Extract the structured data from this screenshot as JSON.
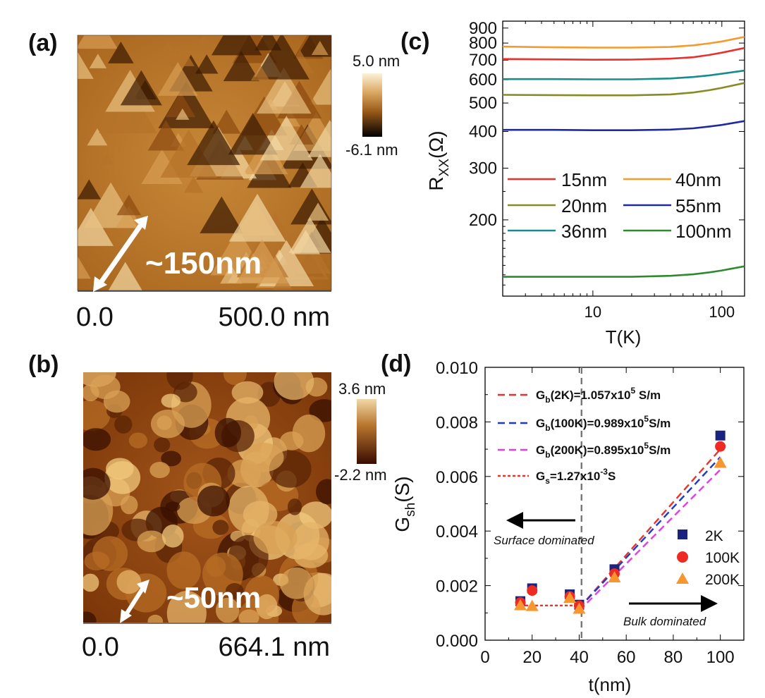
{
  "panels": {
    "a": {
      "label": "(a)",
      "scale_max": "5.0 nm",
      "scale_min": "-6.1 nm",
      "axis_start": "0.0",
      "axis_end": "500.0 nm",
      "feature": "~150nm"
    },
    "b": {
      "label": "(b)",
      "scale_max": "3.6 nm",
      "scale_min": "-2.2 nm",
      "axis_start": "0.0",
      "axis_end": "664.1 nm",
      "feature": "~50nm"
    },
    "c": {
      "label": "(c)"
    },
    "d": {
      "label": "(d)"
    }
  },
  "chart_data": [
    {
      "id": "c",
      "type": "line",
      "title": "",
      "xlabel": "T(K)",
      "ylabel": "R_XX(Ω)",
      "xscale": "log",
      "yscale": "log",
      "xlim": [
        2,
        150
      ],
      "ylim": [
        110,
        950
      ],
      "x_ticks": [
        10,
        100
      ],
      "y_ticks": [
        200,
        300,
        400,
        500,
        600,
        700,
        800,
        900
      ],
      "legend": {
        "location": "center-left",
        "columns": 2
      },
      "series": [
        {
          "name": "15nm",
          "color": "#e8322b",
          "points": [
            [
              2,
              706
            ],
            [
              5,
              704
            ],
            [
              10,
              702
            ],
            [
              20,
              703
            ],
            [
              40,
              708
            ],
            [
              60,
              716
            ],
            [
              80,
              729
            ],
            [
              100,
              742
            ],
            [
              150,
              770
            ]
          ]
        },
        {
          "name": "40nm",
          "color": "#f59a2c",
          "points": [
            [
              2,
              778
            ],
            [
              5,
              774
            ],
            [
              10,
              772
            ],
            [
              20,
              772
            ],
            [
              40,
              776
            ],
            [
              60,
              786
            ],
            [
              80,
              798
            ],
            [
              100,
              810
            ],
            [
              150,
              840
            ]
          ]
        },
        {
          "name": "20nm",
          "color": "#8a8a24",
          "points": [
            [
              2,
              533
            ],
            [
              5,
              532
            ],
            [
              10,
              531
            ],
            [
              20,
              531
            ],
            [
              40,
              535
            ],
            [
              60,
              543
            ],
            [
              80,
              553
            ],
            [
              100,
              563
            ],
            [
              150,
              585
            ]
          ]
        },
        {
          "name": "55nm",
          "color": "#1f2a9e",
          "points": [
            [
              2,
              405
            ],
            [
              5,
              405
            ],
            [
              10,
              404
            ],
            [
              20,
              404
            ],
            [
              40,
              406
            ],
            [
              60,
              410
            ],
            [
              80,
              416
            ],
            [
              100,
              421
            ],
            [
              150,
              434
            ]
          ]
        },
        {
          "name": "36nm",
          "color": "#178c8c",
          "points": [
            [
              2,
              603
            ],
            [
              5,
              603
            ],
            [
              10,
              602
            ],
            [
              20,
              602
            ],
            [
              40,
              606
            ],
            [
              60,
              613
            ],
            [
              80,
              621
            ],
            [
              100,
              629
            ],
            [
              150,
              645
            ]
          ]
        },
        {
          "name": "100nm",
          "color": "#2f8a2f",
          "points": [
            [
              2,
              128
            ],
            [
              5,
              128
            ],
            [
              10,
              128
            ],
            [
              20,
              128
            ],
            [
              40,
              129
            ],
            [
              60,
              130.5
            ],
            [
              80,
              132.5
            ],
            [
              100,
              134.5
            ],
            [
              150,
              139
            ]
          ]
        }
      ]
    },
    {
      "id": "d",
      "type": "scatter",
      "title": "",
      "xlabel": "t(nm)",
      "ylabel": "G_sh(S)",
      "xlim": [
        0,
        110
      ],
      "ylim": [
        0,
        0.01
      ],
      "x_ticks": [
        0,
        20,
        40,
        60,
        80,
        100
      ],
      "y_ticks": [
        0.0,
        0.002,
        0.004,
        0.006,
        0.008,
        0.01
      ],
      "x_tick_labels": [
        "0",
        "20",
        "40",
        "60",
        "80",
        "100"
      ],
      "y_tick_labels": [
        "0.000",
        "0.002",
        "0.004",
        "0.006",
        "0.008",
        "0.010"
      ],
      "vline_x": 41,
      "series": [
        {
          "name": "2K",
          "color": "#1a237e",
          "marker": "square",
          "x": [
            15,
            20,
            36,
            40,
            55,
            100
          ],
          "y": [
            0.00143,
            0.0019,
            0.00168,
            0.0013,
            0.0026,
            0.0075
          ]
        },
        {
          "name": "100K",
          "color": "#ee2a24",
          "marker": "circle",
          "x": [
            15,
            20,
            36,
            40,
            55,
            100
          ],
          "y": [
            0.00138,
            0.00182,
            0.0016,
            0.00126,
            0.00244,
            0.0071
          ]
        },
        {
          "name": "200K",
          "color": "#f7962f",
          "marker": "triangle",
          "x": [
            15,
            20,
            36,
            40,
            55,
            100
          ],
          "y": [
            0.00128,
            0.00125,
            0.00155,
            0.00115,
            0.0023,
            0.0065
          ]
        }
      ],
      "fits": [
        {
          "legend_main": "G",
          "legend_sub": "b",
          "legend_rest": "(2K)=1.057x10",
          "legend_sup": "5",
          "legend_end": " S/m",
          "color": "#e8322b",
          "x": [
            40,
            100
          ],
          "y": [
            0.00118,
            0.007
          ]
        },
        {
          "legend_main": "G",
          "legend_sub": "b",
          "legend_rest": "(100K)=0.989x10",
          "legend_sup": "5",
          "legend_end": "S/m",
          "color": "#1e3acd",
          "x": [
            40,
            100
          ],
          "y": [
            0.00118,
            0.00671
          ]
        },
        {
          "legend_main": "G",
          "legend_sub": "b",
          "legend_rest": "(200K)=0.895x10",
          "legend_sup": "5",
          "legend_end": "S/m",
          "color": "#e040e0",
          "x": [
            40,
            100
          ],
          "y": [
            0.00108,
            0.00625
          ]
        },
        {
          "legend_main": "G",
          "legend_sub": "s",
          "legend_rest": "=1.27x10",
          "legend_sup": "-3",
          "legend_end": "S",
          "color": "#e8322b",
          "x": [
            15,
            40
          ],
          "y": [
            0.00127,
            0.00127
          ],
          "style": "dotted"
        }
      ],
      "annotations": {
        "left": "Surface dominated",
        "right": "Bulk dominated"
      }
    }
  ]
}
